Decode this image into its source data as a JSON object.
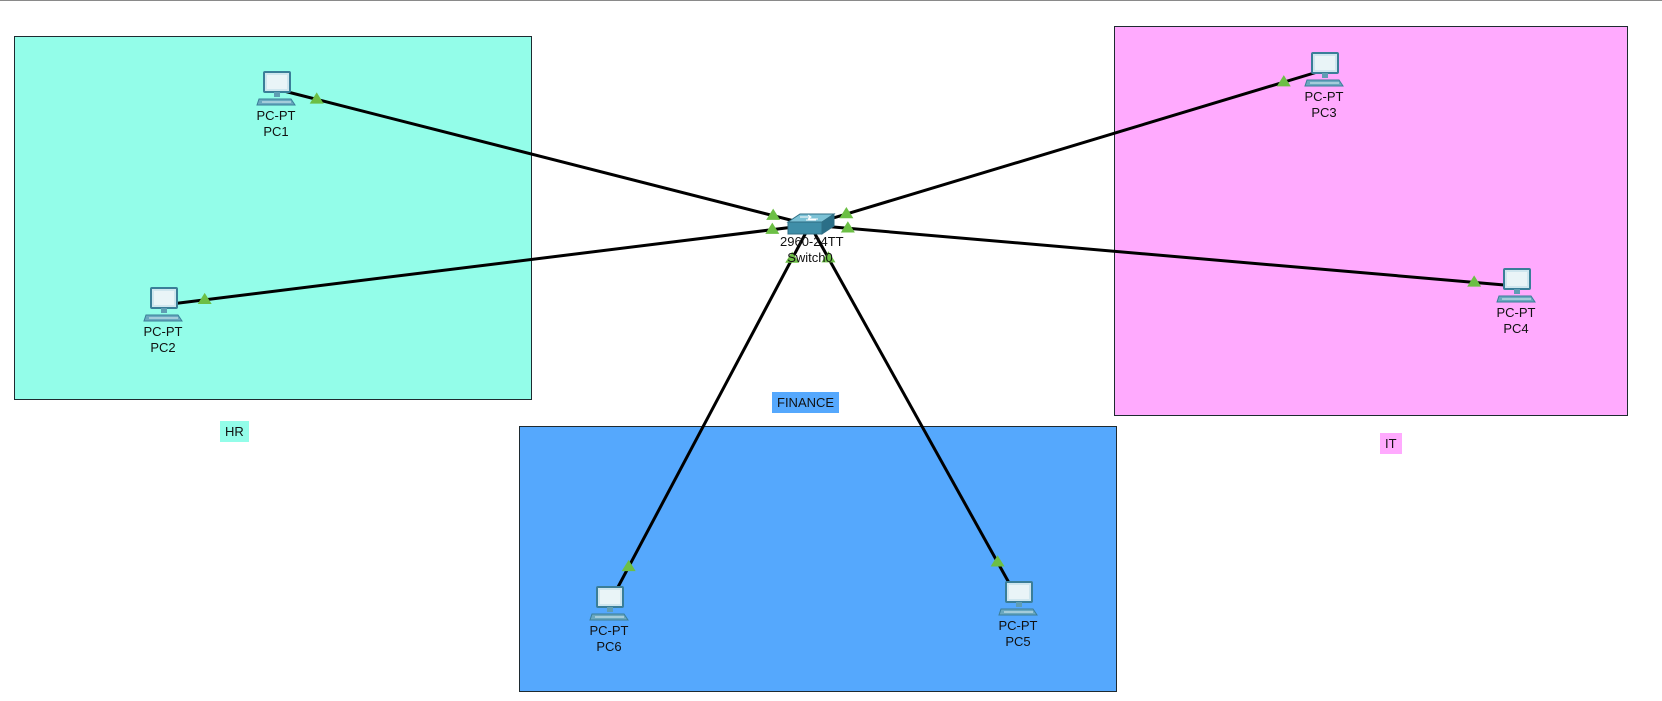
{
  "areas": {
    "hr": {
      "label": "HR",
      "color": "#93fde9"
    },
    "it": {
      "label": "IT",
      "color": "#ffaafe"
    },
    "finance": {
      "label": "FINANCE",
      "color": "#55a8fd"
    }
  },
  "switch": {
    "model": "2960-24TT",
    "name": "Switch0",
    "icon": "switch-icon"
  },
  "devices": [
    {
      "id": "pc1",
      "model": "PC-PT",
      "name": "PC1",
      "icon": "pc-icon"
    },
    {
      "id": "pc2",
      "model": "PC-PT",
      "name": "PC2",
      "icon": "pc-icon"
    },
    {
      "id": "pc3",
      "model": "PC-PT",
      "name": "PC3",
      "icon": "pc-icon"
    },
    {
      "id": "pc4",
      "model": "PC-PT",
      "name": "PC4",
      "icon": "pc-icon"
    },
    {
      "id": "pc5",
      "model": "PC-PT",
      "name": "PC5",
      "icon": "pc-icon"
    },
    {
      "id": "pc6",
      "model": "PC-PT",
      "name": "PC6",
      "icon": "pc-icon"
    }
  ],
  "links": [
    {
      "from": "switch",
      "to": "pc1",
      "status": "up"
    },
    {
      "from": "switch",
      "to": "pc2",
      "status": "up"
    },
    {
      "from": "switch",
      "to": "pc3",
      "status": "up"
    },
    {
      "from": "switch",
      "to": "pc4",
      "status": "up"
    },
    {
      "from": "switch",
      "to": "pc5",
      "status": "up"
    },
    {
      "from": "switch",
      "to": "pc6",
      "status": "up"
    }
  ],
  "colors": {
    "link": "#000000",
    "link_up": "#6cbf45"
  }
}
